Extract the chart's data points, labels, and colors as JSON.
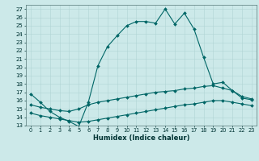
{
  "xlabel": "Humidex (Indice chaleur)",
  "background_color": "#cce9e9",
  "grid_color": "#b0d4d4",
  "line_color": "#006666",
  "xlim": [
    -0.5,
    23.5
  ],
  "ylim": [
    13,
    27.5
  ],
  "yticks": [
    13,
    14,
    15,
    16,
    17,
    18,
    19,
    20,
    21,
    22,
    23,
    24,
    25,
    26,
    27
  ],
  "xticks": [
    0,
    1,
    2,
    3,
    4,
    5,
    6,
    7,
    8,
    9,
    10,
    11,
    12,
    13,
    14,
    15,
    16,
    17,
    18,
    19,
    20,
    21,
    22,
    23
  ],
  "series1_x": [
    0,
    1,
    2,
    3,
    4,
    5,
    6,
    7,
    8,
    9,
    10,
    11,
    12,
    13,
    14,
    15,
    16,
    17,
    18,
    19,
    20,
    21,
    22,
    23
  ],
  "series1_y": [
    16.8,
    15.8,
    14.7,
    14.0,
    13.5,
    12.9,
    15.8,
    20.2,
    22.5,
    23.8,
    25.0,
    25.5,
    25.5,
    25.3,
    27.0,
    25.2,
    26.5,
    24.6,
    21.2,
    18.0,
    18.2,
    17.2,
    16.3,
    16.1
  ],
  "series2_x": [
    0,
    1,
    2,
    3,
    4,
    5,
    6,
    7,
    8,
    9,
    10,
    11,
    12,
    13,
    14,
    15,
    16,
    17,
    18,
    19,
    20,
    21,
    22,
    23
  ],
  "series2_y": [
    15.5,
    15.2,
    15.0,
    14.8,
    14.7,
    15.0,
    15.5,
    15.8,
    16.0,
    16.2,
    16.4,
    16.6,
    16.8,
    17.0,
    17.1,
    17.2,
    17.4,
    17.5,
    17.7,
    17.8,
    17.5,
    17.2,
    16.5,
    16.2
  ],
  "series3_x": [
    0,
    1,
    2,
    3,
    4,
    5,
    6,
    7,
    8,
    9,
    10,
    11,
    12,
    13,
    14,
    15,
    16,
    17,
    18,
    19,
    20,
    21,
    22,
    23
  ],
  "series3_y": [
    14.5,
    14.2,
    14.0,
    13.8,
    13.6,
    13.4,
    13.5,
    13.7,
    13.9,
    14.1,
    14.3,
    14.5,
    14.7,
    14.9,
    15.1,
    15.3,
    15.5,
    15.6,
    15.8,
    16.0,
    16.0,
    15.8,
    15.6,
    15.4
  ]
}
